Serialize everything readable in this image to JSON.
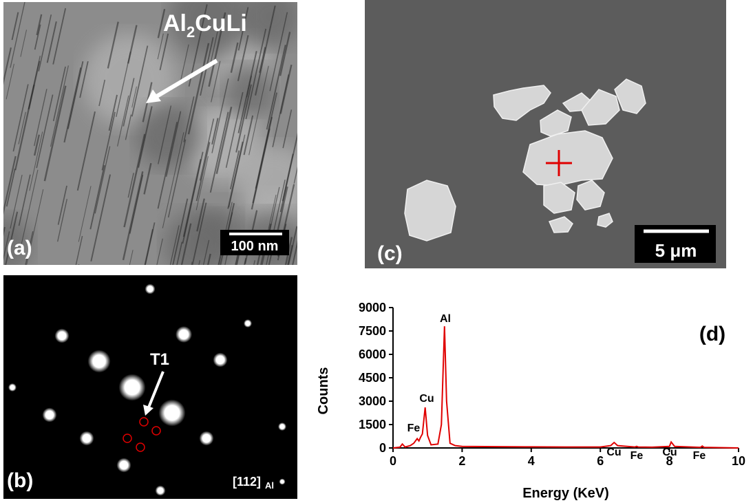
{
  "panels": {
    "a": {
      "label": "(a)",
      "phase": [
        "Al",
        "2",
        "CuLi"
      ],
      "scale_bar": "100 nm"
    },
    "b": {
      "label": "(b)",
      "arrow_label": "T1",
      "zone_axis": "[112]",
      "zone_axis_sub": "Al"
    },
    "c": {
      "label": "(c)",
      "scale_bar": "5 μm"
    }
  },
  "chart_data": {
    "type": "line",
    "panel_label": "(d)",
    "x_label": "Energy (KeV)",
    "y_label": "Counts",
    "color": "#e00000",
    "x": [
      0,
      0.2,
      0.27,
      0.35,
      0.5,
      0.6,
      0.7,
      0.75,
      0.8,
      0.85,
      0.93,
      1.0,
      1.1,
      1.3,
      1.4,
      1.49,
      1.55,
      1.65,
      1.8,
      2,
      3,
      4,
      5,
      6,
      6.3,
      6.4,
      6.5,
      7,
      7.05,
      7.1,
      7.5,
      8,
      8.05,
      8.15,
      8.9,
      8.95,
      9.0,
      10
    ],
    "values": [
      0,
      50,
      250,
      60,
      150,
      300,
      600,
      450,
      700,
      900,
      2600,
      800,
      200,
      250,
      1500,
      7800,
      3000,
      300,
      150,
      100,
      80,
      70,
      60,
      60,
      150,
      350,
      150,
      60,
      100,
      60,
      50,
      100,
      380,
      100,
      40,
      120,
      40,
      0
    ],
    "annotations": [
      "Fe",
      "Cu",
      "Al",
      "Cu",
      "Fe",
      "Cu",
      "Fe"
    ],
    "xlim": [
      0,
      10
    ],
    "xticks": [
      0,
      2,
      4,
      6,
      8,
      10
    ],
    "ylim": [
      0,
      9000
    ],
    "yticks": [
      0,
      1500,
      3000,
      4500,
      6000,
      7500,
      9000
    ]
  }
}
